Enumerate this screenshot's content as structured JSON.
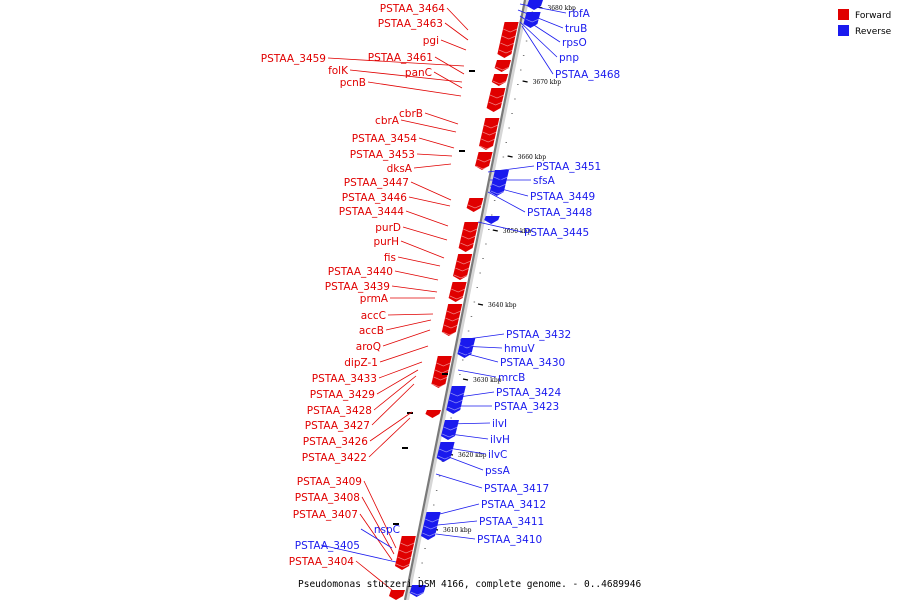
{
  "legend": [
    {
      "label": "Forward",
      "color": "#e00000"
    },
    {
      "label": "Reverse",
      "color": "#1a1aee"
    }
  ],
  "caption": "Pseudomonas stutzeri DSM 4166, complete genome. - 0..4689946",
  "scale_ticks": [
    "3680 kbp",
    "3670 kbp",
    "3660 kbp",
    "3650 kbp",
    "3640 kbp",
    "3630 kbp",
    "3620 kbp",
    "3610 kbp"
  ],
  "forward_genes": [
    "PSTAA_3464",
    "PSTAA_3463",
    "pgi",
    "PSTAA_3459",
    "PSTAA_3461",
    "folK",
    "panC",
    "pcnB",
    "cbrB",
    "cbrA",
    "PSTAA_3454",
    "PSTAA_3453",
    "dksA",
    "PSTAA_3447",
    "PSTAA_3446",
    "PSTAA_3444",
    "purD",
    "purH",
    "fis",
    "PSTAA_3440",
    "PSTAA_3439",
    "prmA",
    "accC",
    "accB",
    "aroQ",
    "dipZ-1",
    "PSTAA_3433",
    "PSTAA_3429",
    "PSTAA_3428",
    "PSTAA_3427",
    "PSTAA_3426",
    "PSTAA_3422",
    "PSTAA_3409",
    "PSTAA_3408",
    "PSTAA_3407",
    "PSTAA_3404"
  ],
  "reverse_genes": [
    "rbfA",
    "truB",
    "rpsO",
    "pnp",
    "PSTAA_3468",
    "PSTAA_3451",
    "sfsA",
    "PSTAA_3449",
    "PSTAA_3448",
    "PSTAA_3445",
    "PSTAA_3432",
    "hmuV",
    "PSTAA_3430",
    "mrcB",
    "PSTAA_3424",
    "PSTAA_3423",
    "ilvI",
    "ilvH",
    "ilvC",
    "pssA",
    "PSTAA_3417",
    "PSTAA_3412",
    "PSTAA_3411",
    "PSTAA_3410",
    "nspC",
    "PSTAA_3405"
  ]
}
